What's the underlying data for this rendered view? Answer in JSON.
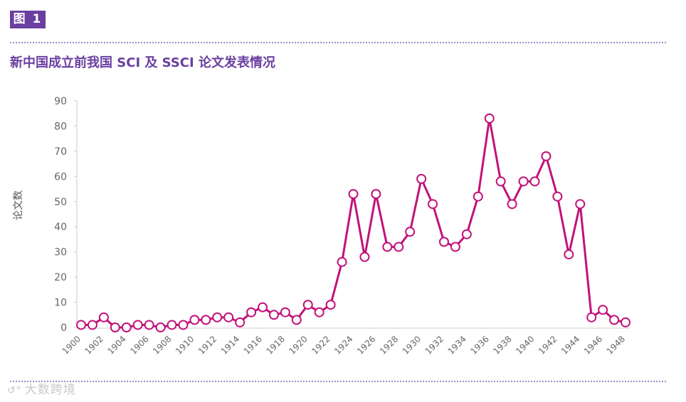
{
  "figure": {
    "badge": "图 1"
  },
  "watermark": {
    "text": "大数跨境",
    "icon": "logo-swirl-icon"
  },
  "colors": {
    "accent": "#6a3fa0",
    "series": "#c2127a",
    "rule": "#9b8fc8",
    "axis": "#666666"
  },
  "chart_data": {
    "type": "line",
    "title": "新中国成立前我国 SCI 及 SSCI 论文发表情况",
    "xlabel": "",
    "ylabel": "论文数",
    "ylim": [
      0,
      90
    ],
    "yticks": [
      0,
      10,
      20,
      30,
      40,
      50,
      60,
      70,
      80,
      90
    ],
    "xticks": [
      1900,
      1902,
      1904,
      1906,
      1908,
      1910,
      1912,
      1914,
      1916,
      1918,
      1920,
      1922,
      1924,
      1926,
      1928,
      1930,
      1932,
      1934,
      1936,
      1938,
      1940,
      1942,
      1944,
      1946,
      1948
    ],
    "grid": false,
    "legend": "none",
    "marker": "open-circle",
    "series": [
      {
        "x": [
          1900,
          1901,
          1902,
          1903,
          1904,
          1905,
          1906,
          1907,
          1908,
          1909,
          1910,
          1911,
          1912,
          1913,
          1914,
          1915,
          1916,
          1917,
          1918,
          1919,
          1920,
          1921,
          1922,
          1923,
          1924,
          1925,
          1926,
          1927,
          1928,
          1929,
          1930,
          1931,
          1932,
          1933,
          1934,
          1935,
          1936,
          1937,
          1938,
          1939,
          1940,
          1941,
          1942,
          1943,
          1944,
          1945,
          1946,
          1947,
          1948
        ],
        "values": [
          1,
          1,
          4,
          0,
          0,
          1,
          1,
          0,
          1,
          1,
          3,
          3,
          4,
          4,
          2,
          6,
          8,
          5,
          6,
          3,
          9,
          6,
          9,
          26,
          53,
          28,
          53,
          32,
          32,
          38,
          59,
          49,
          34,
          32,
          37,
          52,
          83,
          58,
          49,
          58,
          58,
          68,
          52,
          29,
          49,
          4,
          7,
          3,
          2
        ]
      }
    ]
  }
}
